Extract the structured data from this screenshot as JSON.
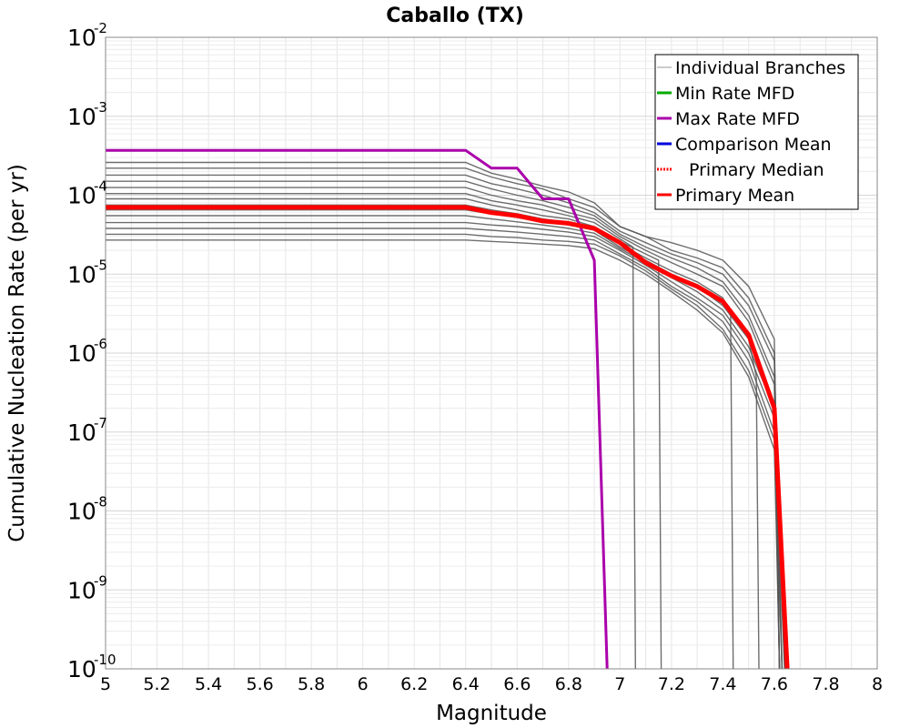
{
  "chart_data": {
    "type": "line",
    "title": "Caballo (TX)",
    "xlabel": "Magnitude",
    "ylabel": "Cumulative Nucleation Rate (per yr)",
    "xlim": [
      5,
      8
    ],
    "ylim": [
      1e-10,
      0.01
    ],
    "yscale": "log",
    "grid": true,
    "legend_position": "top-right",
    "x_ticks": [
      "5",
      "5.2",
      "5.4",
      "5.6",
      "5.8",
      "6",
      "6.2",
      "6.4",
      "6.6",
      "6.8",
      "7",
      "7.2",
      "7.4",
      "7.6",
      "7.8",
      "8"
    ],
    "y_ticks": [
      {
        "base": "10",
        "exp": "-10",
        "value": 1e-10
      },
      {
        "base": "10",
        "exp": "-9",
        "value": 1e-09
      },
      {
        "base": "10",
        "exp": "-8",
        "value": 1e-08
      },
      {
        "base": "10",
        "exp": "-7",
        "value": 1e-07
      },
      {
        "base": "10",
        "exp": "-6",
        "value": 1e-06
      },
      {
        "base": "10",
        "exp": "-5",
        "value": 1e-05
      },
      {
        "base": "10",
        "exp": "-4",
        "value": 0.0001
      },
      {
        "base": "10",
        "exp": "-3",
        "value": 0.001
      },
      {
        "base": "10",
        "exp": "-2",
        "value": 0.01
      }
    ],
    "series": [
      {
        "name": "Individual Branches",
        "color": "#555555",
        "style": "solid",
        "branches": [
          {
            "x": [
              5.0,
              6.4,
              6.5,
              6.6,
              6.7,
              6.8,
              6.9,
              7.0,
              7.1,
              7.2,
              7.3,
              7.4,
              7.5,
              7.6,
              7.62
            ],
            "y": [
              0.00026,
              0.00026,
              0.00019,
              0.00016,
              0.00013,
              0.00011,
              8e-05,
              4e-05,
              3e-05,
              2.5e-05,
              2e-05,
              1.5e-05,
              7e-06,
              1.5e-06,
              1e-10
            ]
          },
          {
            "x": [
              5.0,
              6.4,
              6.5,
              6.6,
              6.7,
              6.8,
              6.9,
              7.0,
              7.1,
              7.2,
              7.3,
              7.4,
              7.5,
              7.6,
              7.63
            ],
            "y": [
              0.00022,
              0.00022,
              0.00017,
              0.00014,
              0.00012,
              9e-05,
              7e-05,
              4e-05,
              3e-05,
              2e-05,
              1.6e-05,
              1.2e-05,
              5e-06,
              1e-06,
              1e-10
            ]
          },
          {
            "x": [
              5.0,
              6.4,
              6.5,
              6.6,
              6.7,
              6.8,
              6.9,
              7.0,
              7.1,
              7.2,
              7.3,
              7.4,
              7.5,
              7.6,
              7.62
            ],
            "y": [
              0.00018,
              0.00018,
              0.00014,
              0.00012,
              0.0001,
              8e-05,
              6e-05,
              3.5e-05,
              2.5e-05,
              1.8e-05,
              1.4e-05,
              1e-05,
              4e-06,
              8e-07,
              1e-10
            ]
          },
          {
            "x": [
              5.0,
              6.4,
              6.5,
              6.6,
              6.7,
              6.8,
              6.9,
              7.0,
              7.1,
              7.2,
              7.3,
              7.4,
              7.5,
              7.6,
              7.64
            ],
            "y": [
              0.00015,
              0.00015,
              0.00012,
              0.0001,
              8.5e-05,
              7e-05,
              5.5e-05,
              3.2e-05,
              2.2e-05,
              1.6e-05,
              1.2e-05,
              8e-06,
              3e-06,
              5e-07,
              1e-10
            ]
          },
          {
            "x": [
              5.0,
              6.4,
              6.5,
              6.6,
              6.7,
              6.8,
              6.9,
              7.0,
              7.1,
              7.2,
              7.3,
              7.4,
              7.5,
              7.6,
              7.62
            ],
            "y": [
              0.000125,
              0.000125,
              0.0001,
              8.5e-05,
              7.5e-05,
              6e-05,
              5e-05,
              3e-05,
              2e-05,
              1.4e-05,
              1e-05,
              7e-06,
              2.5e-06,
              4e-07,
              1e-10
            ]
          },
          {
            "x": [
              5.0,
              6.4,
              6.5,
              6.6,
              6.7,
              6.8,
              6.9,
              7.0,
              7.05,
              7.06
            ],
            "y": [
              0.000105,
              0.000105,
              8.5e-05,
              7.5e-05,
              6.5e-05,
              5.5e-05,
              4.5e-05,
              2.8e-05,
              2.2e-05,
              1e-10
            ]
          },
          {
            "x": [
              5.0,
              6.4,
              6.5,
              6.6,
              6.7,
              6.8,
              6.9,
              7.0,
              7.1,
              7.15,
              7.16
            ],
            "y": [
              9e-05,
              9e-05,
              7.5e-05,
              6.5e-05,
              5.5e-05,
              5e-05,
              4e-05,
              2.6e-05,
              1.8e-05,
              1.5e-05,
              1e-10
            ]
          },
          {
            "x": [
              5.0,
              6.4,
              6.5,
              6.6,
              6.7,
              6.8,
              6.9,
              7.0,
              7.1,
              7.2,
              7.3,
              7.4,
              7.43,
              7.44
            ],
            "y": [
              7.5e-05,
              7.5e-05,
              6.5e-05,
              5.8e-05,
              5e-05,
              4.5e-05,
              3.8e-05,
              2.4e-05,
              1.6e-05,
              1.1e-05,
              8e-06,
              5e-06,
              3e-06,
              1e-10
            ]
          },
          {
            "x": [
              5.0,
              6.4,
              6.5,
              6.6,
              6.7,
              6.8,
              6.9,
              7.0,
              7.1,
              7.2,
              7.3,
              7.4,
              7.5,
              7.53,
              7.54
            ],
            "y": [
              6.5e-05,
              6.5e-05,
              5.8e-05,
              5.2e-05,
              4.6e-05,
              4.2e-05,
              3.6e-05,
              2.2e-05,
              1.5e-05,
              1e-05,
              7e-06,
              4e-06,
              1.5e-06,
              5e-07,
              1e-10
            ]
          },
          {
            "x": [
              5.0,
              6.4,
              6.5,
              6.6,
              6.7,
              6.8,
              6.9,
              7.0,
              7.1,
              7.2,
              7.3,
              7.4,
              7.5,
              7.6,
              7.63
            ],
            "y": [
              5.5e-05,
              5.5e-05,
              5e-05,
              4.6e-05,
              4.2e-05,
              3.8e-05,
              3.3e-05,
              2.1e-05,
              1.4e-05,
              9e-06,
              6e-06,
              3.5e-06,
              1.2e-06,
              2e-07,
              1e-10
            ]
          },
          {
            "x": [
              5.0,
              6.4,
              6.5,
              6.6,
              6.7,
              6.8,
              6.9,
              7.0,
              7.1,
              7.2,
              7.3,
              7.4,
              7.5,
              7.6,
              7.62
            ],
            "y": [
              4.5e-05,
              4.5e-05,
              4.2e-05,
              4e-05,
              3.7e-05,
              3.4e-05,
              3e-05,
              2e-05,
              1.3e-05,
              8e-06,
              5e-06,
              3e-06,
              1e-06,
              1.5e-07,
              1e-10
            ]
          },
          {
            "x": [
              5.0,
              6.4,
              6.5,
              6.6,
              6.7,
              6.8,
              6.9,
              7.0,
              7.1,
              7.2,
              7.3,
              7.4,
              7.5,
              7.6,
              7.64
            ],
            "y": [
              3.8e-05,
              3.8e-05,
              3.6e-05,
              3.4e-05,
              3.2e-05,
              3e-05,
              2.7e-05,
              1.8e-05,
              1.2e-05,
              7e-06,
              4.5e-06,
              2.5e-06,
              8e-07,
              1e-07,
              1e-10
            ]
          },
          {
            "x": [
              5.0,
              6.4,
              6.5,
              6.6,
              6.7,
              6.8,
              6.9,
              7.0,
              7.1,
              7.2,
              7.3,
              7.4,
              7.5,
              7.6,
              7.62
            ],
            "y": [
              3.2e-05,
              3.2e-05,
              3e-05,
              2.9e-05,
              2.7e-05,
              2.6e-05,
              2.4e-05,
              1.7e-05,
              1.1e-05,
              6.5e-06,
              4e-06,
              2e-06,
              6e-07,
              8e-08,
              1e-10
            ]
          },
          {
            "x": [
              5.0,
              6.4,
              6.5,
              6.6,
              6.7,
              6.8,
              6.9,
              7.0,
              7.1,
              7.2,
              7.3,
              7.4,
              7.5,
              7.6,
              7.63
            ],
            "y": [
              2.7e-05,
              2.7e-05,
              2.6e-05,
              2.5e-05,
              2.4e-05,
              2.3e-05,
              2.1e-05,
              1.5e-05,
              1e-05,
              6e-06,
              3.5e-06,
              1.8e-06,
              5e-07,
              6e-08,
              1e-10
            ]
          }
        ]
      },
      {
        "name": "Min Rate MFD",
        "color": "#00aa00",
        "style": "solid",
        "x": [],
        "y": []
      },
      {
        "name": "Max Rate MFD",
        "color": "#aa00aa",
        "style": "solid",
        "x": [
          5.0,
          6.4,
          6.5,
          6.6,
          6.7,
          6.8,
          6.9,
          6.95
        ],
        "y": [
          0.00037,
          0.00037,
          0.00022,
          0.00022,
          9e-05,
          9e-05,
          1.5e-05,
          1e-10
        ]
      },
      {
        "name": "Comparison Mean",
        "color": "#0000dd",
        "style": "solid",
        "x": [],
        "y": []
      },
      {
        "name": "Primary Median",
        "color": "#ff0000",
        "style": "dotted",
        "x": [],
        "y": []
      },
      {
        "name": "Primary Mean",
        "color": "#ff0000",
        "style": "solid",
        "x": [
          5.0,
          6.4,
          6.5,
          6.6,
          6.7,
          6.8,
          6.9,
          7.0,
          7.1,
          7.2,
          7.3,
          7.4,
          7.5,
          7.6,
          7.65
        ],
        "y": [
          7e-05,
          7e-05,
          6e-05,
          5.5e-05,
          4.7e-05,
          4.4e-05,
          3.8e-05,
          2.5e-05,
          1.4e-05,
          9.5e-06,
          7e-06,
          4.5e-06,
          1.7e-06,
          2e-07,
          1e-10
        ]
      }
    ]
  }
}
